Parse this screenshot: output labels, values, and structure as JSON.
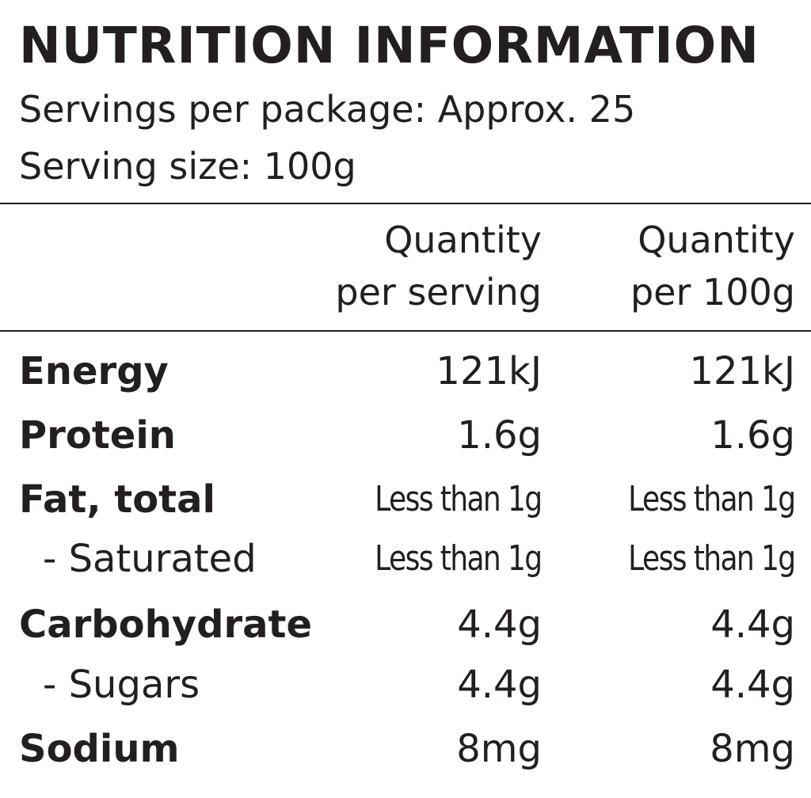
{
  "header": {
    "title": "NUTRITION INFORMATION",
    "servings_per_package": "Servings per package: Approx. 25",
    "serving_size": "Serving size: 100g"
  },
  "columns": {
    "serving_line1": "Quantity",
    "serving_line2": "per serving",
    "hundred_line1": "Quantity",
    "hundred_line2": "per 100g"
  },
  "rows": [
    {
      "label": "Energy",
      "per_serving": "121kJ",
      "per_100g": "121kJ"
    },
    {
      "label": "Protein",
      "per_serving": "1.6g",
      "per_100g": "1.6g"
    },
    {
      "label": "Fat, total",
      "per_serving": "Less than 1g",
      "per_100g": "Less than 1g"
    },
    {
      "label": "- Saturated",
      "per_serving": "Less than 1g",
      "per_100g": "Less than 1g"
    },
    {
      "label": "Carbohydrate",
      "per_serving": "4.4g",
      "per_100g": "4.4g"
    },
    {
      "label": "- Sugars",
      "per_serving": "4.4g",
      "per_100g": "4.4g"
    },
    {
      "label": "Sodium",
      "per_serving": "8mg",
      "per_100g": "8mg"
    }
  ],
  "colors": {
    "text": "#231f20",
    "background": "#ffffff"
  }
}
